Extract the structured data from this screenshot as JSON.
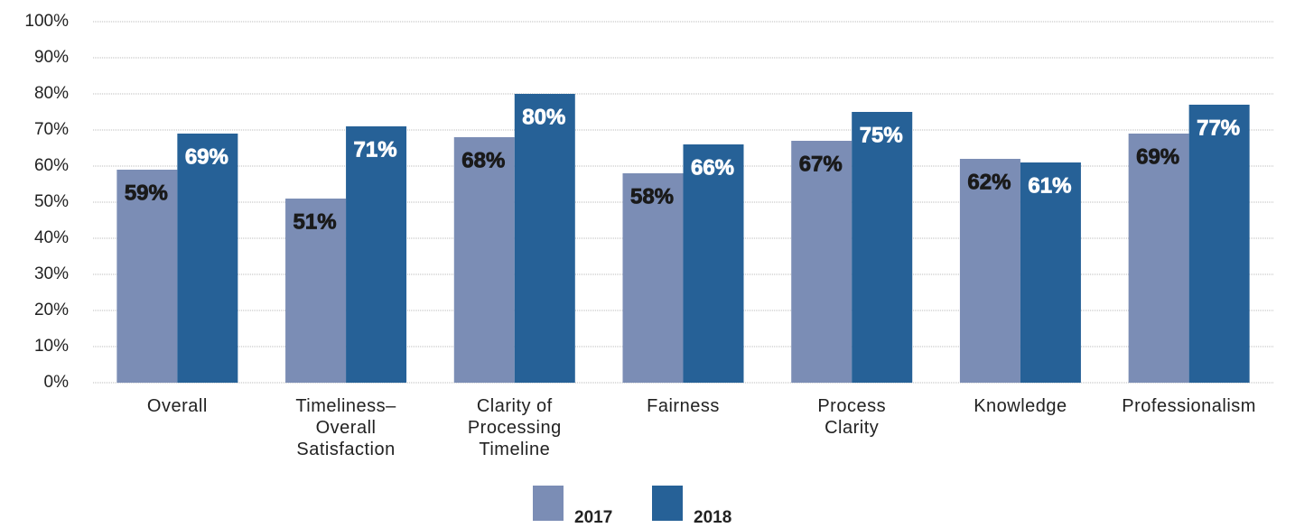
{
  "chart_data": {
    "type": "bar",
    "categories": [
      "Overall",
      "Timeliness–\nOverall\nSatisfaction",
      "Clarity of\nProcessing\nTimeline",
      "Fairness",
      "Process\nClarity",
      "Knowledge",
      "Professionalism"
    ],
    "series": [
      {
        "name": "2017",
        "color": "#7b8db5",
        "label_color": "#1a1a1a",
        "values": [
          59,
          51,
          68,
          58,
          67,
          62,
          69
        ],
        "value_labels": [
          "59%",
          "51%",
          "68%",
          "58%",
          "67%",
          "62%",
          "69%"
        ]
      },
      {
        "name": "2018",
        "color": "#266197",
        "label_color": "#ffffff",
        "values": [
          69,
          71,
          80,
          66,
          75,
          61,
          77
        ],
        "value_labels": [
          "69%",
          "71%",
          "80%",
          "66%",
          "75%",
          "61%",
          "77%"
        ]
      }
    ],
    "ylim": [
      0,
      100
    ],
    "yticks": [
      {
        "value": 0,
        "label": "0%"
      },
      {
        "value": 10,
        "label": "10%"
      },
      {
        "value": 20,
        "label": "20%"
      },
      {
        "value": 30,
        "label": "30%"
      },
      {
        "value": 40,
        "label": "40%"
      },
      {
        "value": 50,
        "label": "50%"
      },
      {
        "value": 60,
        "label": "60%"
      },
      {
        "value": 70,
        "label": "70%"
      },
      {
        "value": 80,
        "label": "80%"
      },
      {
        "value": 90,
        "label": "90%"
      },
      {
        "value": 100,
        "label": "100%"
      }
    ],
    "grid": true,
    "legend": "bottom"
  }
}
